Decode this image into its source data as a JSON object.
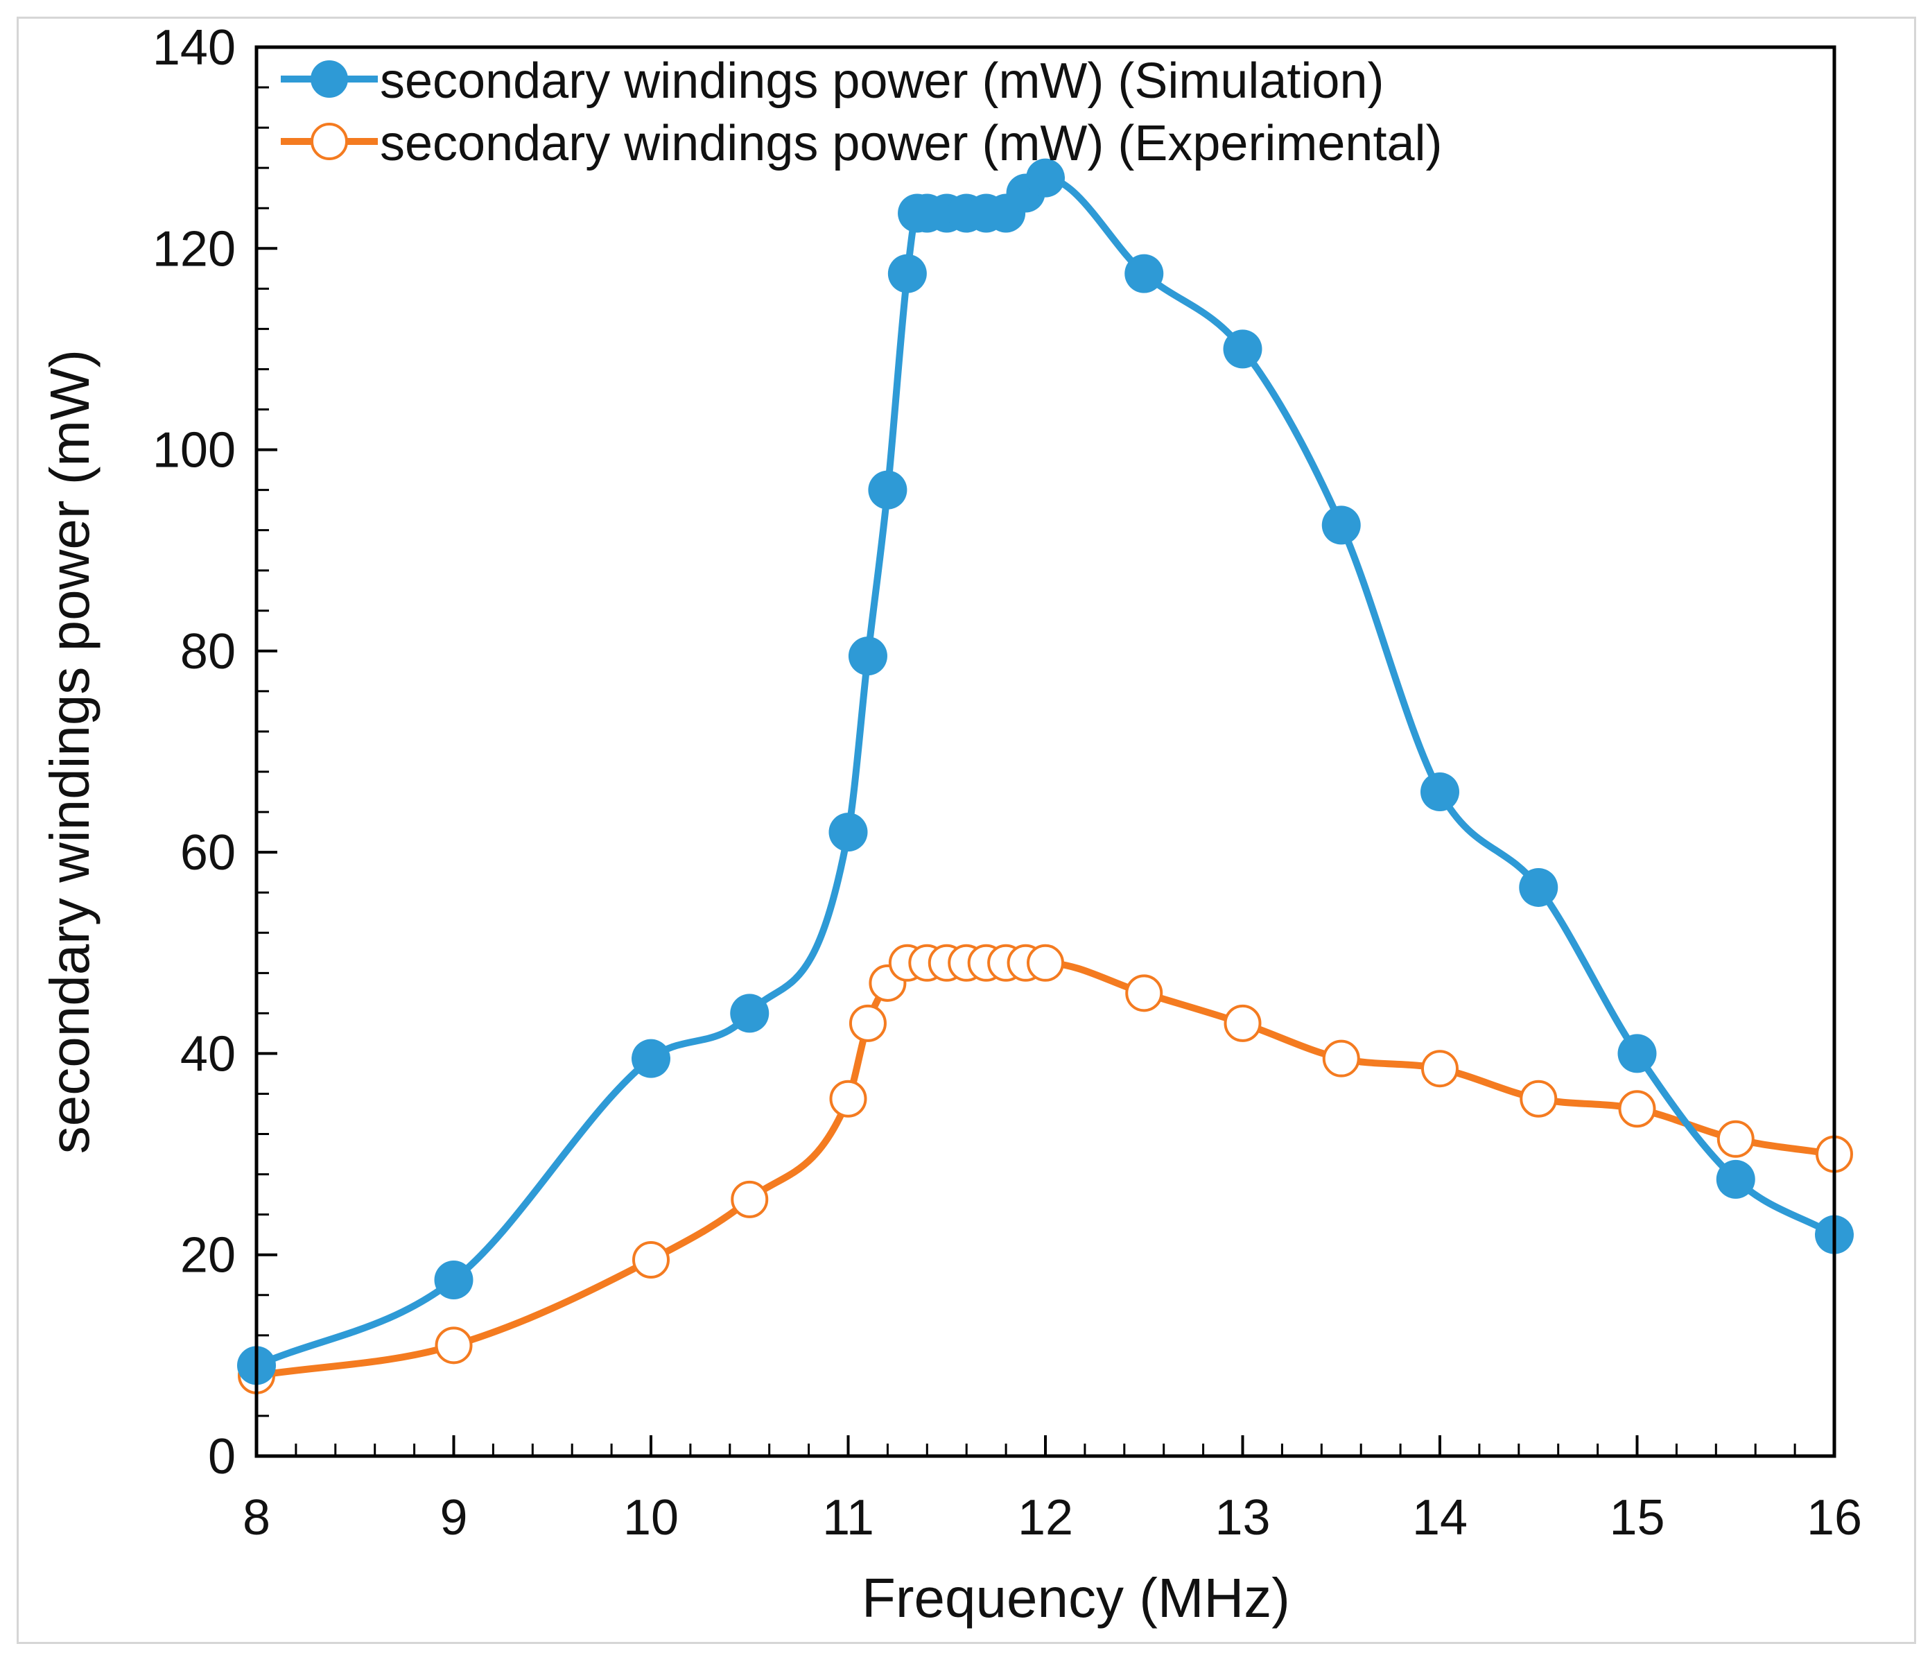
{
  "chart_data": {
    "type": "line",
    "title": "",
    "xlabel": "Frequency (MHz)",
    "ylabel": "secondary windings power (mW)",
    "xlim": [
      8,
      16
    ],
    "ylim": [
      0,
      140
    ],
    "xticks": [
      8,
      9,
      10,
      11,
      12,
      13,
      14,
      15,
      16
    ],
    "yticks": [
      0,
      20,
      40,
      60,
      80,
      100,
      120,
      140
    ],
    "x_minor_step": 0.2,
    "y_minor_step": 4,
    "grid": false,
    "legend_position": "top-left",
    "series": [
      {
        "name": "secondary windings power (mW) (Simulation)",
        "color": "#2e9ad6",
        "marker": "filled-circle",
        "x": [
          8,
          9,
          10,
          10.5,
          11,
          11.1,
          11.2,
          11.3,
          11.35,
          11.4,
          11.5,
          11.6,
          11.7,
          11.8,
          11.9,
          12,
          12.5,
          13,
          13.5,
          14,
          14.5,
          15,
          15.5,
          16
        ],
        "y": [
          9,
          17.5,
          39.5,
          44,
          62,
          79.5,
          96,
          117.5,
          123.5,
          123.5,
          123.5,
          123.5,
          123.5,
          123.5,
          125.5,
          127,
          117.5,
          110,
          92.5,
          66,
          56.5,
          40,
          27.5,
          22
        ]
      },
      {
        "name": "secondary windings power (mW) (Experimental)",
        "color": "#f47b20",
        "marker": "open-circle",
        "x": [
          8,
          9,
          10,
          10.5,
          11,
          11.1,
          11.2,
          11.3,
          11.4,
          11.5,
          11.6,
          11.7,
          11.8,
          11.9,
          12,
          12.5,
          13,
          13.5,
          14,
          14.5,
          15,
          15.5,
          16
        ],
        "y": [
          8,
          11,
          19.5,
          25.5,
          35.5,
          43,
          47,
          49,
          49,
          49,
          49,
          49,
          49,
          49,
          49,
          46,
          43,
          39.5,
          38.5,
          35.5,
          34.5,
          31.5,
          30
        ]
      }
    ]
  }
}
